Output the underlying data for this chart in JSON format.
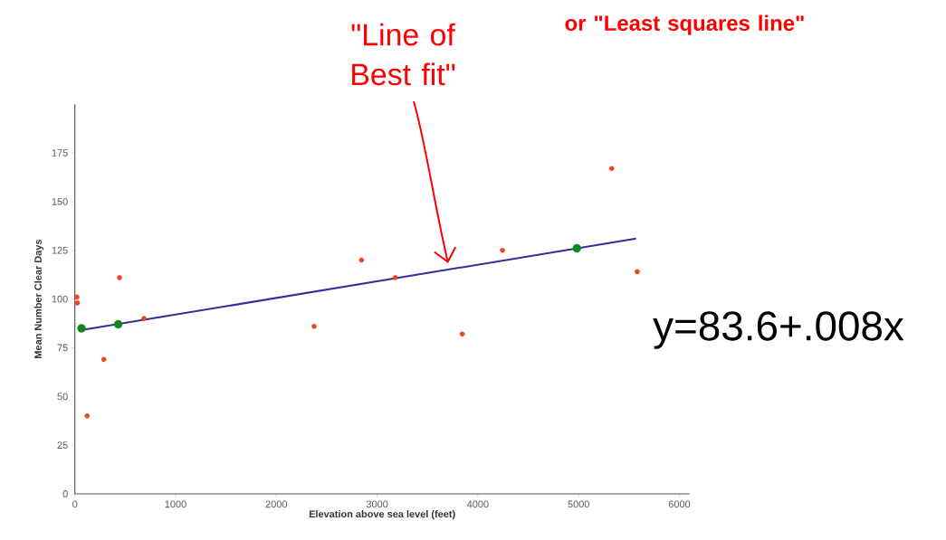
{
  "chart_data": {
    "type": "scatter",
    "xlabel": "Elevation above sea level (feet)",
    "ylabel": "Mean Number Clear Days",
    "xlim": [
      0,
      6100
    ],
    "ylim": [
      0,
      200
    ],
    "xticks": [
      0,
      1000,
      2000,
      3000,
      4000,
      5000,
      6000
    ],
    "yticks": [
      0,
      25,
      50,
      75,
      100,
      125,
      150,
      175
    ],
    "grid": false,
    "series": [
      {
        "color": "#ee4422",
        "x": [
          20,
          25,
          122,
          287,
          443,
          686,
          2375,
          2845,
          3180,
          3845,
          4244,
          5328,
          5582
        ],
        "values": [
          101,
          98,
          40,
          69,
          111,
          90,
          86,
          120,
          111,
          82,
          125,
          167,
          114
        ]
      },
      {
        "type": "line",
        "color": "#3a2a9a",
        "marker": "none",
        "line_style": "solid",
        "x": [
          60,
          5570
        ],
        "values": [
          84,
          131
        ]
      },
      {
        "color": "#0a8a1a",
        "x": [
          66,
          430,
          4982
        ],
        "values": [
          85,
          87,
          126
        ]
      }
    ],
    "annotations": [
      "\"Line of Best fit\"",
      "or \"Least squares line\"",
      "y=83.6+.008x"
    ]
  }
}
